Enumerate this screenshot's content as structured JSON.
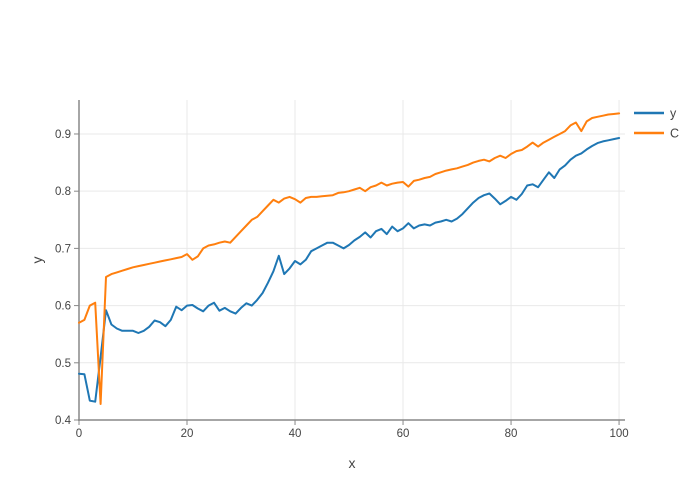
{
  "page": {
    "background": "#ffffff"
  },
  "legend": {
    "items": [
      {
        "label": "y",
        "color": "#1f77b4"
      },
      {
        "label": "C",
        "color": "#ff7f0e"
      }
    ]
  },
  "chart_data": {
    "type": "line",
    "title": "",
    "xlabel": "x",
    "ylabel": "y",
    "x_ticks": [
      0,
      20,
      40,
      60,
      80,
      100
    ],
    "y_ticks": [
      0.4,
      0.5,
      0.6,
      0.7,
      0.8,
      0.9
    ],
    "xlim": [
      0,
      101.1
    ],
    "ylim": [
      0.4,
      0.9594
    ],
    "grid": true,
    "legend_position": "outside-top-right",
    "grid_color": "#e9e9e9",
    "axis_line_color": "#888888",
    "tick_text_color": "#444444",
    "series": [
      {
        "name": "y",
        "color": "#1f77b4",
        "x0": 0,
        "dx": 1,
        "values": [
          0.481,
          0.48,
          0.434,
          0.432,
          0.51,
          0.592,
          0.567,
          0.56,
          0.556,
          0.556,
          0.556,
          0.552,
          0.556,
          0.563,
          0.574,
          0.571,
          0.564,
          0.575,
          0.598,
          0.592,
          0.6,
          0.601,
          0.595,
          0.59,
          0.6,
          0.605,
          0.591,
          0.596,
          0.59,
          0.586,
          0.596,
          0.604,
          0.6,
          0.61,
          0.622,
          0.64,
          0.66,
          0.687,
          0.655,
          0.665,
          0.678,
          0.672,
          0.68,
          0.695,
          0.7,
          0.705,
          0.71,
          0.71,
          0.705,
          0.7,
          0.706,
          0.714,
          0.72,
          0.728,
          0.719,
          0.73,
          0.734,
          0.725,
          0.738,
          0.73,
          0.735,
          0.744,
          0.735,
          0.74,
          0.742,
          0.74,
          0.745,
          0.747,
          0.75,
          0.747,
          0.752,
          0.76,
          0.77,
          0.78,
          0.788,
          0.793,
          0.796,
          0.787,
          0.777,
          0.783,
          0.79,
          0.785,
          0.795,
          0.81,
          0.812,
          0.807,
          0.82,
          0.833,
          0.823,
          0.838,
          0.845,
          0.855,
          0.862,
          0.866,
          0.873,
          0.879,
          0.884,
          0.887,
          0.889,
          0.891,
          0.893
        ]
      },
      {
        "name": "C",
        "color": "#ff7f0e",
        "x0": 0,
        "dx": 1,
        "values": [
          0.57,
          0.575,
          0.6,
          0.605,
          0.428,
          0.65,
          0.655,
          0.658,
          0.661,
          0.664,
          0.667,
          0.669,
          0.671,
          0.673,
          0.675,
          0.677,
          0.679,
          0.681,
          0.683,
          0.685,
          0.69,
          0.68,
          0.686,
          0.7,
          0.705,
          0.707,
          0.71,
          0.712,
          0.71,
          0.72,
          0.73,
          0.74,
          0.75,
          0.755,
          0.765,
          0.775,
          0.785,
          0.78,
          0.787,
          0.79,
          0.786,
          0.78,
          0.788,
          0.79,
          0.79,
          0.791,
          0.792,
          0.793,
          0.797,
          0.798,
          0.8,
          0.803,
          0.806,
          0.8,
          0.807,
          0.81,
          0.815,
          0.81,
          0.813,
          0.815,
          0.816,
          0.808,
          0.818,
          0.82,
          0.823,
          0.825,
          0.83,
          0.833,
          0.836,
          0.838,
          0.84,
          0.843,
          0.846,
          0.85,
          0.853,
          0.855,
          0.852,
          0.858,
          0.862,
          0.858,
          0.865,
          0.87,
          0.872,
          0.878,
          0.885,
          0.878,
          0.885,
          0.89,
          0.895,
          0.9,
          0.905,
          0.915,
          0.92,
          0.905,
          0.922,
          0.928,
          0.93,
          0.932,
          0.934,
          0.935,
          0.936
        ]
      }
    ]
  }
}
